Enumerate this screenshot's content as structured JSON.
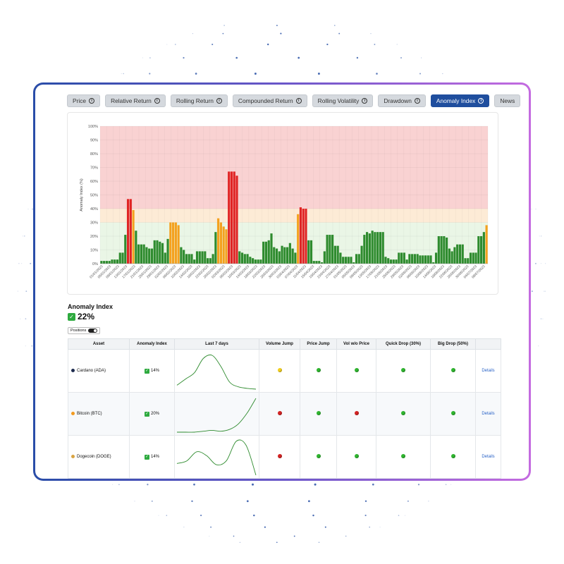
{
  "tabs": [
    {
      "label": "Price",
      "info": true,
      "active": false
    },
    {
      "label": "Relative Return",
      "info": true,
      "active": false
    },
    {
      "label": "Rolling Return",
      "info": true,
      "active": false
    },
    {
      "label": "Compounded Return",
      "info": true,
      "active": false
    },
    {
      "label": "Rolling Volatility",
      "info": true,
      "active": false
    },
    {
      "label": "Drawdown",
      "info": true,
      "active": false
    },
    {
      "label": "Anomaly Index",
      "info": true,
      "active": true
    },
    {
      "label": "News",
      "info": false,
      "active": false
    }
  ],
  "colors": {
    "bar_high": "#e02424",
    "bar_mid": "#f4a11e",
    "bar_low": "#2e8b2e",
    "zone_high": "#f9d2d2",
    "zone_mid": "#fdebd6",
    "zone_low": "#eaf6e6",
    "accent": "#1f4e9e"
  },
  "chart_data": {
    "type": "bar",
    "ylabel": "Anomaly Index (%)",
    "ylim": [
      0,
      100
    ],
    "yticks": [
      "0%",
      "10%",
      "20%",
      "30%",
      "40%",
      "50%",
      "60%",
      "70%",
      "80%",
      "90%",
      "100%"
    ],
    "zones": [
      {
        "from": 0,
        "to": 30,
        "color": "zone_low"
      },
      {
        "from": 30,
        "to": 40,
        "color": "zone_mid"
      },
      {
        "from": 40,
        "to": 100,
        "color": "zone_high"
      }
    ],
    "xtick_labels": [
      "01/01/2023",
      "05/01/2023",
      "09/01/2023",
      "13/01/2023",
      "17/01/2023",
      "21/01/2023",
      "25/01/2023",
      "29/01/2023",
      "02/02/2023",
      "06/02/2023",
      "10/02/2023",
      "14/02/2023",
      "18/02/2023",
      "22/02/2023",
      "26/02/2023",
      "02/03/2023",
      "06/03/2023",
      "10/03/2023",
      "14/03/2023",
      "18/03/2023",
      "22/03/2023",
      "26/03/2023",
      "30/03/2023",
      "03/04/2023",
      "07/04/2023",
      "11/04/2023",
      "15/04/2023",
      "19/04/2023",
      "23/04/2023",
      "27/04/2023",
      "01/05/2023",
      "05/05/2023",
      "09/05/2023",
      "13/05/2023",
      "17/05/2023",
      "21/05/2023",
      "25/05/2023",
      "29/05/2023",
      "02/06/2023",
      "06/06/2023",
      "10/06/2023",
      "14/06/2023",
      "18/06/2023",
      "22/06/2023",
      "26/06/2023",
      "30/06/2023",
      "04/07/2023",
      "08/07/2023"
    ],
    "values": [
      2,
      2,
      2,
      2,
      3,
      3,
      3,
      8,
      8,
      21,
      47,
      47,
      39,
      24,
      14,
      14,
      14,
      12,
      11,
      11,
      17,
      17,
      16,
      15,
      8,
      18,
      30,
      30,
      30,
      28,
      12,
      10,
      7,
      7,
      7,
      3,
      9,
      9,
      9,
      9,
      4,
      4,
      7,
      23,
      33,
      30,
      27,
      25,
      67,
      67,
      67,
      64,
      9,
      8,
      7,
      7,
      5,
      4,
      3,
      3,
      3,
      16,
      16,
      17,
      22,
      12,
      11,
      9,
      13,
      12,
      12,
      15,
      11,
      8,
      36,
      41,
      40,
      40,
      17,
      17,
      2,
      2,
      2,
      1,
      9,
      21,
      21,
      21,
      13,
      13,
      8,
      5,
      5,
      5,
      5,
      1,
      7,
      7,
      13,
      21,
      23,
      22,
      24,
      23,
      23,
      23,
      23,
      5,
      4,
      3,
      3,
      3,
      8,
      8,
      8,
      3,
      7,
      7,
      7,
      7,
      6,
      6,
      6,
      6,
      6,
      1,
      8,
      20,
      20,
      20,
      19,
      11,
      9,
      12,
      14,
      14,
      14,
      4,
      4,
      8,
      8,
      8,
      20,
      20,
      23,
      28
    ]
  },
  "anomaly_index": {
    "title": "Anomaly Index",
    "value": "22%"
  },
  "positions_label": "Positions",
  "table": {
    "headers": [
      "Asset",
      "Anomaly Index",
      "Last 7 days",
      "Volume Jump",
      "Price Jump",
      "Vol w/o Price",
      "Quick Drop (30%)",
      "Big Drop (50%)",
      ""
    ],
    "rows": [
      {
        "asset": "Cardano (ADA)",
        "coin_color": "#1d2b4e",
        "anomaly": "14%",
        "spark": [
          6,
          14,
          22,
          40,
          44,
          30,
          10,
          4,
          2,
          1
        ],
        "statuses": [
          "yellow",
          "green",
          "green",
          "green",
          "green"
        ],
        "link": "Details"
      },
      {
        "asset": "Bitcoin (BTC)",
        "coin_color": "#f29a1f",
        "anomaly": "20%",
        "spark": [
          1,
          1,
          1,
          2,
          3,
          2,
          4,
          10,
          22,
          38
        ],
        "statuses": [
          "red",
          "green",
          "red",
          "green",
          "green"
        ],
        "link": "Details"
      },
      {
        "asset": "Dogecoin (DOGE)",
        "coin_color": "#d9a442",
        "anomaly": "14%",
        "spark": [
          4,
          8,
          22,
          16,
          2,
          8,
          38,
          32,
          -14
        ],
        "statuses": [
          "red",
          "green",
          "green",
          "green",
          "green"
        ],
        "link": "Details"
      }
    ],
    "status_colors": {
      "green": "#2fb52f",
      "yellow": "#f2cf1e",
      "red": "#d42323"
    }
  }
}
